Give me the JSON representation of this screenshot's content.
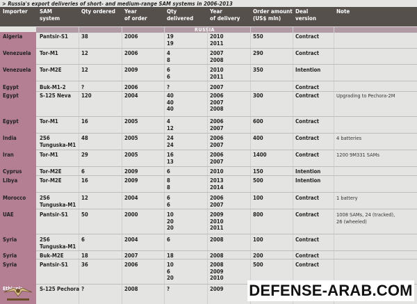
{
  "caption": "> Russia's export deliveries of short- and medium-range SAM systems in 2006-2013",
  "headers": {
    "importer": "Importer",
    "sam_system": "SAM\nsystem",
    "qty_ordered": "Qty ordered",
    "year_order": "Year\nof order",
    "qty_delivered": "Qty\ndelivered",
    "year_delivery": "Year\nof delivery",
    "order_amount": "Order amount\n(US$ mln)",
    "deal_version": "Deal\nversion",
    "note": "Note"
  },
  "section_label": "RUSSIA",
  "rows": [
    {
      "importer": "Algeria",
      "system": "Pantsir-S1",
      "qty_ordered": "38",
      "year_order": "2006",
      "qty_delivered": "19\n19",
      "year_delivery": "2010\n2011",
      "amount": "550",
      "version": "Contract",
      "note": ""
    },
    {
      "importer": "Venezuela",
      "system": "Tor-M1",
      "qty_ordered": "12",
      "year_order": "2006",
      "qty_delivered": "4\n8",
      "year_delivery": "2007\n2008",
      "amount": "290",
      "version": "Contract",
      "note": ""
    },
    {
      "importer": "Venezuela",
      "system": "Tor-M2E",
      "qty_ordered": "12",
      "year_order": "2009",
      "qty_delivered": "6\n6",
      "year_delivery": "2010\n2011",
      "amount": "350",
      "version": "Intention",
      "note": ""
    },
    {
      "importer": "Egypt",
      "system": "Buk-M1-2",
      "qty_ordered": "?",
      "year_order": "2006",
      "qty_delivered": "?",
      "year_delivery": "2007",
      "amount": "",
      "version": "Contract",
      "note": ""
    },
    {
      "importer": "Egypt",
      "system": "S-125 Neva",
      "qty_ordered": "120",
      "year_order": "2004",
      "qty_delivered": "40\n40\n40",
      "year_delivery": "2006\n2007\n2008",
      "amount": "300",
      "version": "Contract",
      "note": "Upgrading to Pechora-2M"
    },
    {
      "importer": "Egypt",
      "system": "Tor-M1",
      "qty_ordered": "16",
      "year_order": "2005",
      "qty_delivered": "4\n12",
      "year_delivery": "2006\n2007",
      "amount": "600",
      "version": "Contract",
      "note": ""
    },
    {
      "importer": "India",
      "system": "2S6\nTunguska-M1",
      "qty_ordered": "48",
      "year_order": "2005",
      "qty_delivered": "24\n24",
      "year_delivery": "2006\n2007",
      "amount": "400",
      "version": "Contract",
      "note": "4 batteries"
    },
    {
      "importer": "Iran",
      "system": "Tor-M1",
      "qty_ordered": "29",
      "year_order": "2005",
      "qty_delivered": "16\n13",
      "year_delivery": "2006\n2007",
      "amount": "1400",
      "version": "Contract",
      "note": "1200 9M331 SAMs"
    },
    {
      "importer": "Cyprus",
      "system": "Tor-M2E",
      "qty_ordered": "6",
      "year_order": "2009",
      "qty_delivered": "6",
      "year_delivery": "2010",
      "amount": "150",
      "version": "Intention",
      "note": ""
    },
    {
      "importer": "Libya",
      "system": "Tor-M2E",
      "qty_ordered": "16",
      "year_order": "2009",
      "qty_delivered": "8\n8",
      "year_delivery": "2013\n2014",
      "amount": "500",
      "version": "Intention",
      "note": ""
    },
    {
      "importer": "Morocco",
      "system": "2S6\nTunguska-M1",
      "qty_ordered": "12",
      "year_order": "2004",
      "qty_delivered": "6\n6",
      "year_delivery": "2006\n2007",
      "amount": "100",
      "version": "Contract",
      "note": "1 battery"
    },
    {
      "importer": "UAE",
      "system": "Pantsir-S1",
      "qty_ordered": "50",
      "year_order": "2000",
      "qty_delivered": "10\n20\n20",
      "year_delivery": "2009\n2010\n2011",
      "amount": "800",
      "version": "Contract",
      "note": "1008 SAMs, 24 (tracked),\n26 (wheeled)"
    },
    {
      "importer": "Syria",
      "system": "2S6\nTunguska-M1",
      "qty_ordered": "6",
      "year_order": "2004",
      "qty_delivered": "6",
      "year_delivery": "2008",
      "amount": "100",
      "version": "Contract",
      "note": ""
    },
    {
      "importer": "Syria",
      "system": "Buk-M2E",
      "qty_ordered": "18",
      "year_order": "2007",
      "qty_delivered": "18",
      "year_delivery": "2008",
      "amount": "200",
      "version": "Contract",
      "note": ""
    },
    {
      "importer": "Syria",
      "system": "Pantsir-S1",
      "qty_ordered": "36",
      "year_order": "2006",
      "qty_delivered": "10\n6\n20",
      "year_delivery": "2008\n2009\n2010",
      "amount": "500",
      "version": "Contract",
      "note": ""
    },
    {
      "importer": "Ethiopia",
      "system": "S-125 Pechora",
      "qty_ordered": "?",
      "year_order": "2008",
      "qty_delivered": "?",
      "year_delivery": "2009",
      "amount": "",
      "version": "",
      "note": ""
    }
  ],
  "watermark": "DEFENSE-ARAB.COM"
}
